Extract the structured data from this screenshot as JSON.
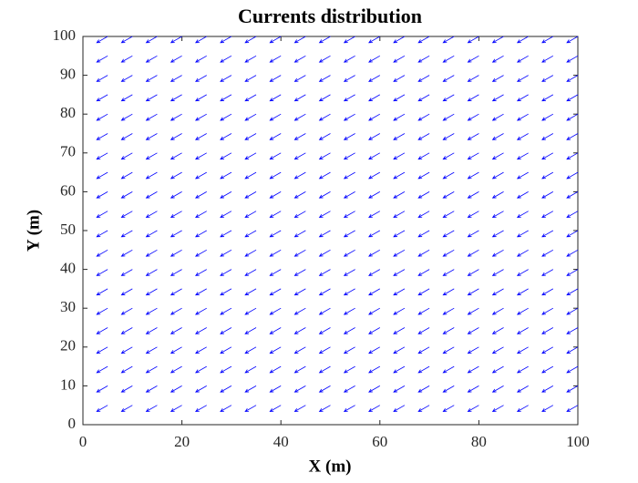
{
  "chart_data": {
    "type": "quiver",
    "title": "Currents distribution",
    "xlabel": "X (m)",
    "ylabel": "Y (m)",
    "x": [
      5,
      10,
      15,
      20,
      25,
      30,
      35,
      40,
      45,
      50,
      55,
      60,
      65,
      70,
      75,
      80,
      85,
      90,
      95,
      100
    ],
    "y": [
      5,
      10,
      15,
      20,
      25,
      30,
      35,
      40,
      45,
      50,
      55,
      60,
      65,
      70,
      75,
      80,
      85,
      90,
      95,
      100
    ],
    "u": -2.2,
    "v": -1.6,
    "color": "#0000ff",
    "xlim": [
      0,
      100
    ],
    "ylim": [
      0,
      100
    ],
    "xticks": [
      0,
      20,
      40,
      60,
      80,
      100
    ],
    "yticks": [
      0,
      10,
      20,
      30,
      40,
      50,
      60,
      70,
      80,
      90,
      100
    ]
  }
}
